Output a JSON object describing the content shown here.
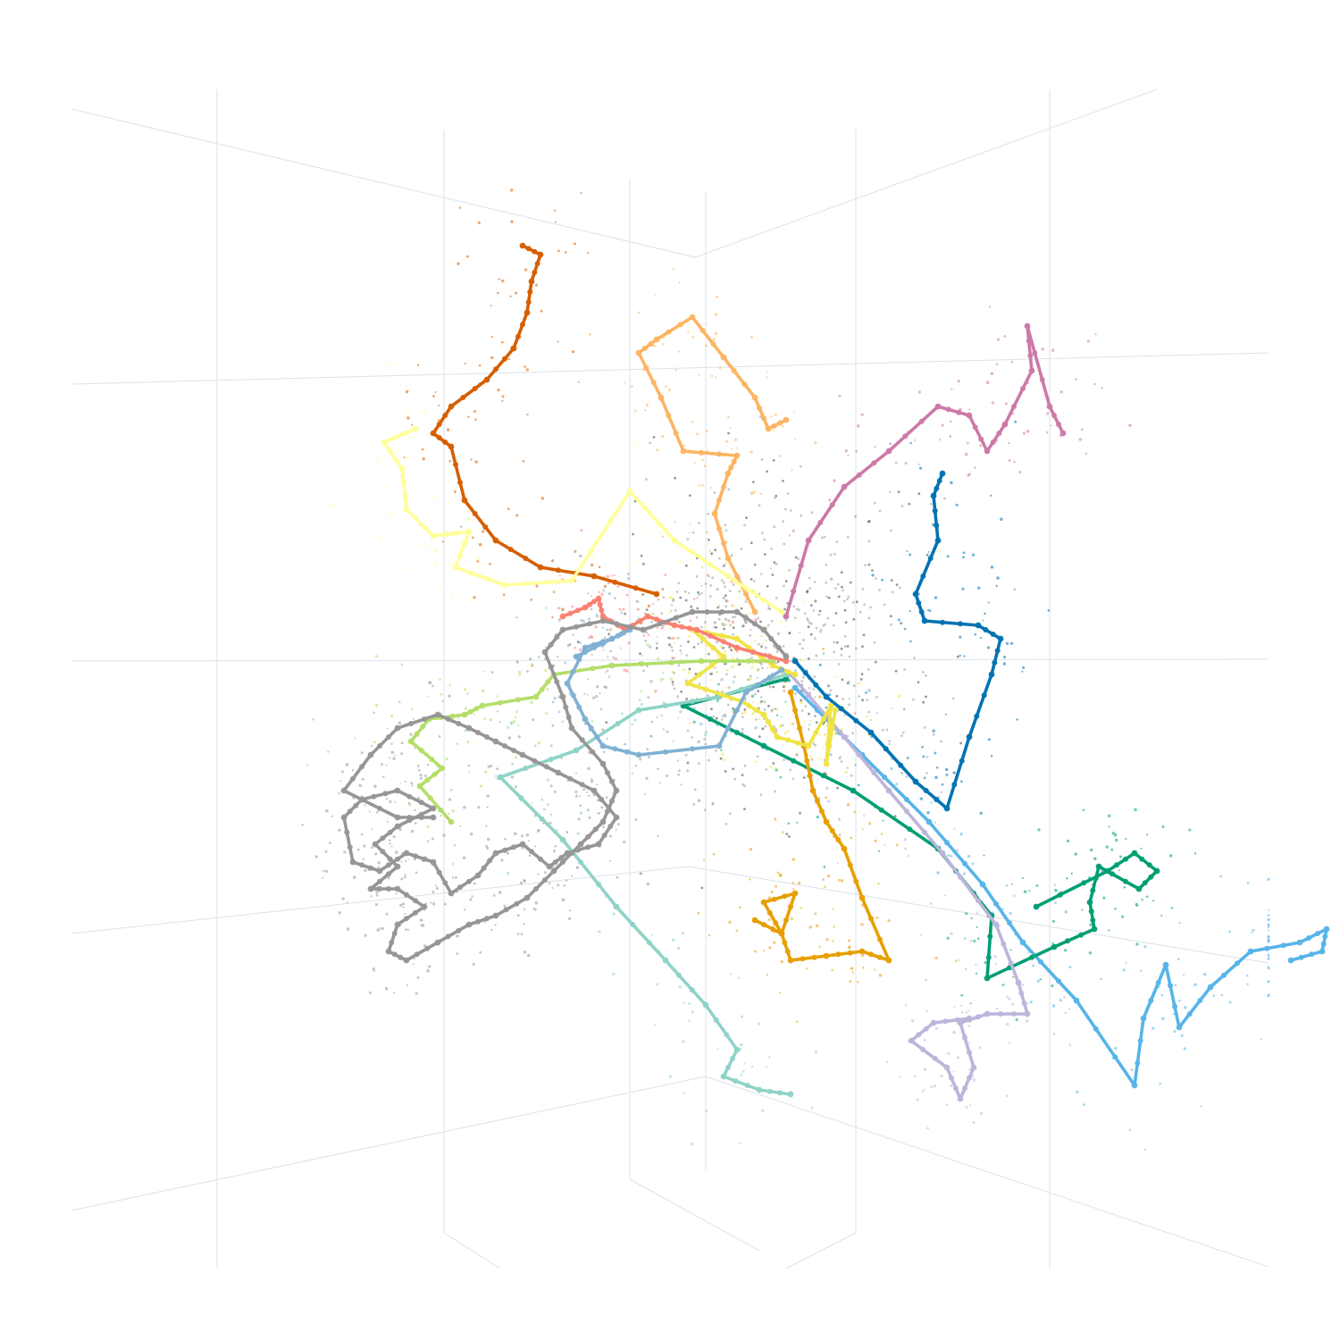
{
  "chart_data": {
    "type": "scatter",
    "title": "",
    "projection": "3d",
    "axes_visible": false,
    "grid": true,
    "legend": "none",
    "origin": [
      0,
      0
    ],
    "series": [
      {
        "color": "#d55e00",
        "points": [
          [
            -150,
            -80
          ],
          [
            -220,
            -100
          ],
          [
            -280,
            -110
          ],
          [
            -330,
            -140
          ],
          [
            -365,
            -185
          ],
          [
            -380,
            -245
          ],
          [
            -400,
            -260
          ],
          [
            -380,
            -290
          ],
          [
            -340,
            -320
          ],
          [
            -310,
            -355
          ],
          [
            -295,
            -395
          ],
          [
            -290,
            -430
          ],
          [
            -280,
            -460
          ],
          [
            -300,
            -470
          ]
        ]
      },
      {
        "color": "#fdb462",
        "points": [
          [
            -40,
            -60
          ],
          [
            -70,
            -120
          ],
          [
            -85,
            -170
          ],
          [
            -70,
            -215
          ],
          [
            -60,
            -235
          ],
          [
            -120,
            -240
          ],
          [
            -145,
            -300
          ],
          [
            -170,
            -350
          ],
          [
            -150,
            -365
          ],
          [
            -110,
            -390
          ],
          [
            -75,
            -345
          ],
          [
            -40,
            -300
          ],
          [
            -25,
            -265
          ],
          [
            -5,
            -275
          ]
        ]
      },
      {
        "color": "#cc79a7",
        "points": [
          [
            -5,
            -55
          ],
          [
            20,
            -140
          ],
          [
            60,
            -200
          ],
          [
            110,
            -240
          ],
          [
            165,
            -290
          ],
          [
            200,
            -280
          ],
          [
            220,
            -240
          ],
          [
            240,
            -270
          ],
          [
            270,
            -330
          ],
          [
            265,
            -380
          ],
          [
            290,
            -290
          ],
          [
            305,
            -260
          ]
        ]
      },
      {
        "color": "#0072b2",
        "points": [
          [
            5,
            -5
          ],
          [
            40,
            35
          ],
          [
            90,
            75
          ],
          [
            140,
            130
          ],
          [
            175,
            160
          ],
          [
            200,
            80
          ],
          [
            225,
            10
          ],
          [
            235,
            -30
          ],
          [
            210,
            -45
          ],
          [
            150,
            -50
          ],
          [
            140,
            -80
          ],
          [
            165,
            -140
          ],
          [
            160,
            -190
          ],
          [
            170,
            -215
          ]
        ]
      },
      {
        "color": "#56b4e9",
        "points": [
          [
            5,
            25
          ],
          [
            80,
            100
          ],
          [
            155,
            175
          ],
          [
            215,
            245
          ],
          [
            260,
            310
          ],
          [
            320,
            375
          ],
          [
            385,
            470
          ],
          [
            395,
            395
          ],
          [
            420,
            335
          ],
          [
            435,
            405
          ],
          [
            470,
            360
          ],
          [
            515,
            320
          ],
          [
            570,
            310
          ],
          [
            600,
            295
          ],
          [
            595,
            320
          ],
          [
            560,
            330
          ]
        ]
      },
      {
        "color": "#009e73",
        "points": [
          [
            -5,
            15
          ],
          [
            -120,
            45
          ],
          [
            -30,
            90
          ],
          [
            70,
            140
          ],
          [
            165,
            205
          ],
          [
            225,
            280
          ],
          [
            220,
            350
          ],
          [
            295,
            315
          ],
          [
            340,
            295
          ],
          [
            335,
            265
          ],
          [
            345,
            225
          ],
          [
            390,
            250
          ],
          [
            410,
            230
          ],
          [
            385,
            210
          ],
          [
            355,
            230
          ],
          [
            275,
            270
          ]
        ]
      },
      {
        "color": "#e69f00",
        "points": [
          [
            0,
            30
          ],
          [
            15,
            90
          ],
          [
            25,
            140
          ],
          [
            40,
            175
          ],
          [
            60,
            205
          ],
          [
            80,
            260
          ],
          [
            110,
            330
          ],
          [
            80,
            320
          ],
          [
            40,
            325
          ],
          [
            0,
            330
          ],
          [
            -10,
            300
          ],
          [
            -30,
            265
          ],
          [
            5,
            255
          ],
          [
            -10,
            300
          ],
          [
            -40,
            285
          ]
        ]
      },
      {
        "color": "#bcb5db",
        "points": [
          [
            0,
            10
          ],
          [
            60,
            80
          ],
          [
            110,
            140
          ],
          [
            170,
            210
          ],
          [
            230,
            290
          ],
          [
            255,
            355
          ],
          [
            265,
            390
          ],
          [
            220,
            390
          ],
          [
            190,
            400
          ],
          [
            205,
            450
          ],
          [
            190,
            485
          ],
          [
            175,
            450
          ],
          [
            135,
            420
          ],
          [
            160,
            400
          ],
          [
            200,
            395
          ]
        ]
      },
      {
        "color": "#8fd3c7",
        "points": [
          [
            -5,
            10
          ],
          [
            -80,
            35
          ],
          [
            -170,
            50
          ],
          [
            -240,
            95
          ],
          [
            -325,
            125
          ],
          [
            -255,
            195
          ],
          [
            -195,
            270
          ],
          [
            -140,
            330
          ],
          [
            -95,
            380
          ],
          [
            -60,
            430
          ],
          [
            -75,
            460
          ],
          [
            -35,
            475
          ],
          [
            0,
            480
          ]
        ]
      },
      {
        "color": "#f0e442",
        "points": [
          [
            5,
            10
          ],
          [
            -20,
            0
          ],
          [
            -60,
            -30
          ],
          [
            -110,
            -40
          ],
          [
            -75,
            -10
          ],
          [
            -115,
            20
          ],
          [
            -55,
            40
          ],
          [
            -30,
            55
          ],
          [
            -15,
            80
          ],
          [
            20,
            90
          ],
          [
            45,
            45
          ],
          [
            40,
            110
          ],
          [
            50,
            50
          ]
        ]
      },
      {
        "color": "#ffff99",
        "points": [
          [
            -10,
            -60
          ],
          [
            -70,
            -100
          ],
          [
            -130,
            -140
          ],
          [
            -180,
            -195
          ],
          [
            -245,
            -95
          ],
          [
            -320,
            -90
          ],
          [
            -375,
            -110
          ],
          [
            -360,
            -150
          ],
          [
            -400,
            -145
          ],
          [
            -430,
            -175
          ],
          [
            -435,
            -220
          ],
          [
            -455,
            -250
          ],
          [
            -420,
            -265
          ]
        ]
      },
      {
        "color": "#b3de69",
        "points": [
          [
            -20,
            -5
          ],
          [
            -100,
            -5
          ],
          [
            -200,
            0
          ],
          [
            -265,
            10
          ],
          [
            -285,
            35
          ],
          [
            -345,
            45
          ],
          [
            -365,
            55
          ],
          [
            -405,
            60
          ],
          [
            -425,
            85
          ],
          [
            -390,
            115
          ],
          [
            -415,
            135
          ],
          [
            -380,
            175
          ]
        ]
      },
      {
        "color": "#fb8072",
        "points": [
          [
            -5,
            -5
          ],
          [
            -60,
            -20
          ],
          [
            -105,
            -40
          ],
          [
            -130,
            -45
          ],
          [
            -160,
            -55
          ],
          [
            -185,
            -40
          ],
          [
            -210,
            -55
          ],
          [
            -215,
            -75
          ],
          [
            -230,
            -65
          ],
          [
            -255,
            -55
          ]
        ]
      },
      {
        "color": "#80b1d3",
        "points": [
          [
            -10,
            5
          ],
          [
            -50,
            30
          ],
          [
            -80,
            90
          ],
          [
            -170,
            100
          ],
          [
            -210,
            90
          ],
          [
            -230,
            60
          ],
          [
            -250,
            20
          ],
          [
            -230,
            -20
          ],
          [
            -200,
            -30
          ],
          [
            -180,
            -40
          ],
          [
            -210,
            -25
          ],
          [
            -240,
            -10
          ]
        ]
      },
      {
        "color": "#969696",
        "points": [
          [
            -5,
            -10
          ],
          [
            -30,
            -40
          ],
          [
            -60,
            -60
          ],
          [
            -110,
            -60
          ],
          [
            -165,
            -40
          ],
          [
            -210,
            -50
          ],
          [
            -255,
            -40
          ],
          [
            -275,
            -15
          ],
          [
            -255,
            35
          ],
          [
            -245,
            70
          ],
          [
            -210,
            110
          ],
          [
            -195,
            140
          ],
          [
            -210,
            175
          ],
          [
            -235,
            200
          ],
          [
            -265,
            230
          ],
          [
            -295,
            260
          ],
          [
            -330,
            280
          ],
          [
            -360,
            290
          ],
          [
            -395,
            310
          ],
          [
            -430,
            330
          ],
          [
            -450,
            320
          ],
          [
            -440,
            290
          ],
          [
            -410,
            270
          ],
          [
            -440,
            250
          ],
          [
            -470,
            250
          ],
          [
            -440,
            225
          ],
          [
            -465,
            200
          ],
          [
            -440,
            180
          ],
          [
            -400,
            160
          ],
          [
            -440,
            140
          ],
          [
            -480,
            150
          ],
          [
            -500,
            170
          ],
          [
            -490,
            220
          ],
          [
            -460,
            230
          ],
          [
            -430,
            210
          ],
          [
            -400,
            220
          ],
          [
            -380,
            255
          ],
          [
            -350,
            235
          ],
          [
            -330,
            210
          ],
          [
            -300,
            200
          ],
          [
            -270,
            225
          ],
          [
            -250,
            210
          ],
          [
            -215,
            200
          ],
          [
            -195,
            170
          ],
          [
            -220,
            140
          ],
          [
            -260,
            120
          ],
          [
            -300,
            100
          ],
          [
            -330,
            85
          ],
          [
            -360,
            70
          ],
          [
            -395,
            55
          ],
          [
            -440,
            70
          ],
          [
            -470,
            100
          ],
          [
            -500,
            140
          ],
          [
            -440,
            170
          ],
          [
            -400,
            170
          ]
        ]
      }
    ]
  }
}
